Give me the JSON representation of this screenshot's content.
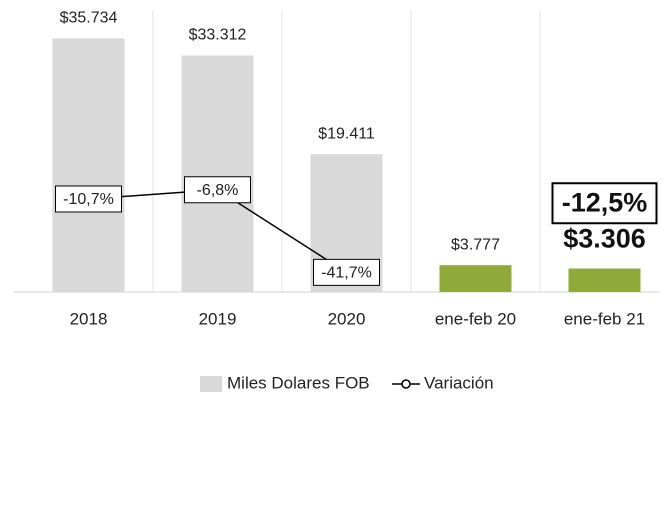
{
  "chart_data": {
    "type": "bar-line",
    "categories": [
      "2018",
      "2019",
      "2020",
      "ene-feb 20",
      "ene-feb 21"
    ],
    "series": [
      {
        "name": "Miles Dolares FOB",
        "type": "bar",
        "colors": [
          "#d9d9d9",
          "#d9d9d9",
          "#d9d9d9",
          "#8faa3a",
          "#8faa3a"
        ],
        "values": [
          35734,
          33312,
          19411,
          3777,
          3306
        ],
        "value_labels": [
          "$35.734",
          "$33.312",
          "$19.411",
          "$3.777",
          "$3.306"
        ]
      },
      {
        "name": "Variación",
        "type": "line",
        "color": "#000000",
        "axis": "y2",
        "values": [
          -10.7,
          -6.8,
          -41.7,
          null,
          -12.5
        ],
        "value_labels": [
          "-10,7%",
          "-6,8%",
          "-41,7%",
          null,
          "-12,5%"
        ]
      }
    ],
    "ylim": [
      0,
      40000
    ],
    "y2lim": [
      -50,
      70
    ],
    "legend": "bottom"
  }
}
